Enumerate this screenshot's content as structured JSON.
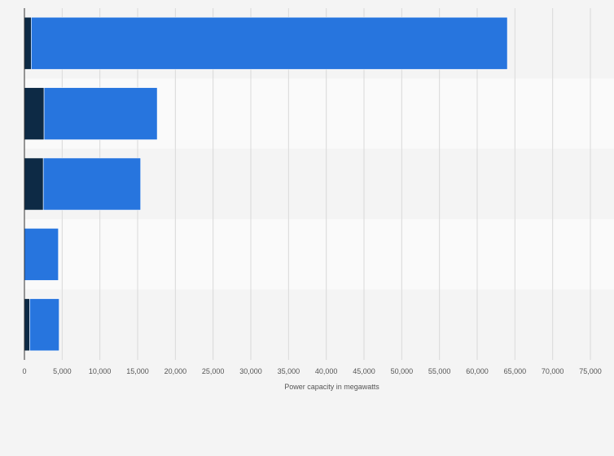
{
  "chart_data": {
    "type": "bar",
    "orientation": "horizontal",
    "stacked": true,
    "title": "",
    "xlabel": "Power capacity in megawatts",
    "ylabel": "",
    "xlim": [
      0,
      75000
    ],
    "x_ticks": [
      {
        "value": 0,
        "label": "0"
      },
      {
        "value": 5000,
        "label": "5,000"
      },
      {
        "value": 10000,
        "label": "10,000"
      },
      {
        "value": 15000,
        "label": "15,000"
      },
      {
        "value": 20000,
        "label": "20,000"
      },
      {
        "value": 25000,
        "label": "25,000"
      },
      {
        "value": 30000,
        "label": "30,000"
      },
      {
        "value": 35000,
        "label": "35,000"
      },
      {
        "value": 40000,
        "label": "40,000"
      },
      {
        "value": 45000,
        "label": "45,000"
      },
      {
        "value": 50000,
        "label": "50,000"
      },
      {
        "value": 55000,
        "label": "55,000"
      },
      {
        "value": 60000,
        "label": "60,000"
      },
      {
        "value": 65000,
        "label": "65,000"
      },
      {
        "value": 70000,
        "label": "70,000"
      },
      {
        "value": 75000,
        "label": "75,000"
      }
    ],
    "categories": [
      "",
      "",
      "",
      "",
      ""
    ],
    "series": [
      {
        "color": "#0d2a45",
        "values": [
          900,
          2600,
          2500,
          0,
          700
        ]
      },
      {
        "color": "#2775de",
        "values": [
          63100,
          15000,
          12900,
          4500,
          3900
        ]
      }
    ],
    "grid": true,
    "legend": "none"
  }
}
